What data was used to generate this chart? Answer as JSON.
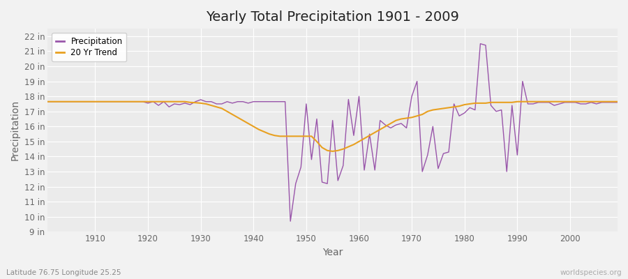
{
  "title": "Yearly Total Precipitation 1901 - 2009",
  "xlabel": "Year",
  "ylabel": "Precipitation",
  "subtitle": "Latitude 76.75 Longitude 25.25",
  "watermark": "worldspecies.org",
  "fig_bg_color": "#f0f0f0",
  "plot_bg_color": "#ebebeb",
  "grid_color": "#ffffff",
  "line_color": "#9955aa",
  "trend_color": "#e8a020",
  "ylim": [
    9,
    22.5
  ],
  "yticks": [
    9,
    10,
    11,
    12,
    13,
    14,
    15,
    16,
    17,
    18,
    19,
    20,
    21,
    22
  ],
  "xlim": [
    1901,
    2009
  ],
  "xticks": [
    1910,
    1920,
    1930,
    1940,
    1950,
    1960,
    1970,
    1980,
    1990,
    2000
  ],
  "years": [
    1901,
    1902,
    1903,
    1904,
    1905,
    1906,
    1907,
    1908,
    1909,
    1910,
    1911,
    1912,
    1913,
    1914,
    1915,
    1916,
    1917,
    1918,
    1919,
    1920,
    1921,
    1922,
    1923,
    1924,
    1925,
    1926,
    1927,
    1928,
    1929,
    1930,
    1931,
    1932,
    1933,
    1934,
    1935,
    1936,
    1937,
    1938,
    1939,
    1940,
    1941,
    1942,
    1943,
    1944,
    1945,
    1946,
    1947,
    1948,
    1949,
    1950,
    1951,
    1952,
    1953,
    1954,
    1955,
    1956,
    1957,
    1958,
    1959,
    1960,
    1961,
    1962,
    1963,
    1964,
    1965,
    1966,
    1967,
    1968,
    1969,
    1970,
    1971,
    1972,
    1973,
    1974,
    1975,
    1976,
    1977,
    1978,
    1979,
    1980,
    1981,
    1982,
    1983,
    1984,
    1985,
    1986,
    1987,
    1988,
    1989,
    1990,
    1991,
    1992,
    1993,
    1994,
    1995,
    1996,
    1997,
    1998,
    1999,
    2000,
    2001,
    2002,
    2003,
    2004,
    2005,
    2006,
    2007,
    2008,
    2009
  ],
  "precip": [
    17.65,
    17.65,
    17.65,
    17.65,
    17.65,
    17.65,
    17.65,
    17.65,
    17.65,
    17.65,
    17.65,
    17.65,
    17.65,
    17.65,
    17.65,
    17.65,
    17.65,
    17.65,
    17.65,
    17.55,
    17.65,
    17.4,
    17.65,
    17.3,
    17.5,
    17.45,
    17.55,
    17.45,
    17.65,
    17.78,
    17.65,
    17.65,
    17.5,
    17.5,
    17.65,
    17.55,
    17.65,
    17.65,
    17.55,
    17.65,
    17.65,
    17.65,
    17.65,
    17.65,
    17.65,
    17.65,
    9.7,
    12.2,
    13.3,
    17.5,
    13.8,
    16.5,
    12.3,
    12.2,
    16.4,
    12.4,
    13.4,
    17.8,
    15.4,
    18.0,
    13.1,
    15.5,
    13.1,
    16.4,
    16.1,
    15.9,
    16.1,
    16.2,
    15.9,
    18.0,
    19.0,
    13.0,
    14.1,
    16.0,
    13.2,
    14.2,
    14.3,
    17.5,
    16.7,
    16.9,
    17.25,
    17.1,
    21.5,
    21.4,
    17.4,
    17.0,
    17.1,
    13.0,
    17.4,
    14.1,
    19.0,
    17.5,
    17.5,
    17.6,
    17.6,
    17.6,
    17.4,
    17.5,
    17.6,
    17.6,
    17.6,
    17.5,
    17.5,
    17.6,
    17.5,
    17.6,
    17.6,
    17.6,
    17.6
  ],
  "trend": [
    17.65,
    17.65,
    17.65,
    17.65,
    17.65,
    17.65,
    17.65,
    17.65,
    17.65,
    17.65,
    17.65,
    17.65,
    17.65,
    17.65,
    17.65,
    17.65,
    17.65,
    17.65,
    17.65,
    17.65,
    17.65,
    17.65,
    17.65,
    17.65,
    17.65,
    17.65,
    17.65,
    17.6,
    17.58,
    17.55,
    17.5,
    17.4,
    17.3,
    17.2,
    17.0,
    16.8,
    16.6,
    16.4,
    16.2,
    16.0,
    15.8,
    15.65,
    15.5,
    15.4,
    15.35,
    15.35,
    15.35,
    15.35,
    15.35,
    15.35,
    15.35,
    15.0,
    14.6,
    14.4,
    14.35,
    14.4,
    14.5,
    14.65,
    14.8,
    15.0,
    15.2,
    15.4,
    15.6,
    15.8,
    16.0,
    16.2,
    16.4,
    16.5,
    16.55,
    16.6,
    16.7,
    16.8,
    17.0,
    17.1,
    17.15,
    17.2,
    17.25,
    17.3,
    17.35,
    17.45,
    17.5,
    17.55,
    17.55,
    17.55,
    17.6,
    17.6,
    17.6,
    17.6,
    17.6,
    17.65,
    17.65,
    17.65,
    17.65,
    17.65,
    17.65,
    17.65,
    17.65,
    17.65,
    17.65,
    17.65,
    17.65,
    17.65,
    17.65,
    17.65,
    17.65,
    17.65,
    17.65,
    17.65,
    17.65
  ]
}
